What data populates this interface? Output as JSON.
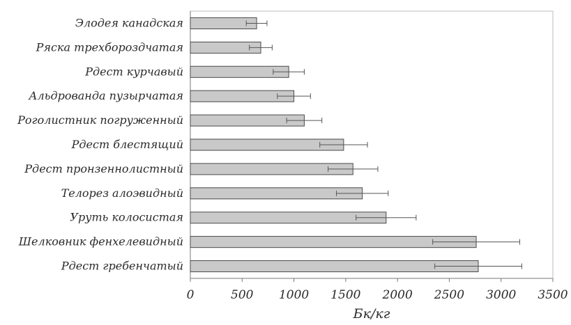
{
  "chart_data": {
    "type": "bar",
    "orientation": "horizontal",
    "categories": [
      "Элодея канадская",
      "Ряска трехбороздчатая",
      "Рдест курчавый",
      "Альдрованда пузырчатая",
      "Роголистник погруженный",
      "Рдест блестящий",
      "Рдест пронзеннолистный",
      "Телорез алоэвидный",
      "Уруть колосистая",
      "Шелковник фенхелевидный",
      "Рдест гребенчатый"
    ],
    "values": [
      640,
      680,
      950,
      1000,
      1100,
      1480,
      1570,
      1660,
      1890,
      2760,
      2780
    ],
    "errors": [
      100,
      110,
      150,
      160,
      170,
      230,
      240,
      250,
      290,
      420,
      420
    ],
    "xlabel": "Бк/кг",
    "ylabel": "",
    "xlim": [
      0,
      3500
    ],
    "xticks": [
      0,
      500,
      1000,
      1500,
      2000,
      2500,
      3000,
      3500
    ],
    "xtick_labels": [
      "0",
      "500",
      "1000",
      "1500",
      "2000",
      "2500",
      "3000",
      "3500"
    ],
    "grid": false,
    "legend": "none",
    "colors": {
      "bar_fill": "#c9c9c9",
      "bar_stroke": "#4a4a4a",
      "frame": "#bdbdbd"
    }
  }
}
